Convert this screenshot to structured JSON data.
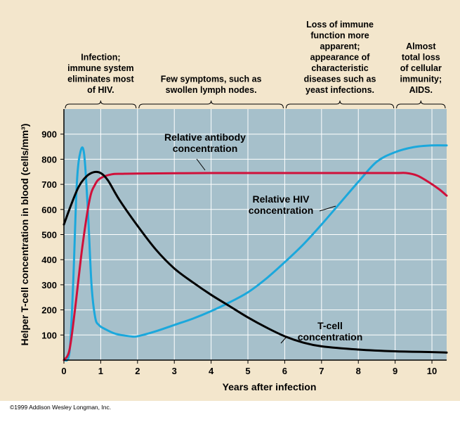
{
  "chart_data": {
    "type": "line",
    "title": "",
    "xlabel": "Years after infection",
    "ylabel": "Helper T-cell concentration in blood (cells/mm³)",
    "xlim": [
      0,
      10.4
    ],
    "ylim": [
      0,
      1000
    ],
    "grid": true,
    "x_ticks": [
      "0",
      "1",
      "2",
      "3",
      "4",
      "5",
      "6",
      "7",
      "8",
      "9",
      "10"
    ],
    "y_ticks": [
      "100",
      "200",
      "300",
      "400",
      "500",
      "600",
      "700",
      "800",
      "900"
    ],
    "phases": [
      {
        "text": [
          "Infection;",
          "immune system",
          "eliminates most",
          "of HIV."
        ],
        "start": 0,
        "end": 2
      },
      {
        "text": [
          "Few symptoms, such as",
          "swollen lymph nodes."
        ],
        "start": 2,
        "end": 6
      },
      {
        "text": [
          "Loss of immune",
          "function more",
          "apparent;",
          "appearance of",
          "characteristic",
          "diseases such as",
          "yeast infections."
        ],
        "start": 6,
        "end": 9
      },
      {
        "text": [
          "Almost",
          "total loss",
          "of cellular",
          "immunity;",
          "AIDS."
        ],
        "start": 9,
        "end": 10.4
      }
    ],
    "series": [
      {
        "name": "T-cell concentration",
        "label_lines": [
          "T-cell",
          "concentration"
        ],
        "color": "#000000",
        "x": [
          0,
          0.2,
          0.4,
          0.6,
          0.8,
          1.0,
          1.2,
          1.5,
          2.0,
          2.5,
          3.0,
          3.5,
          4.0,
          4.5,
          5.0,
          5.5,
          6.0,
          6.5,
          7.0,
          8.0,
          9.0,
          10.0,
          10.4
        ],
        "values": [
          540,
          620,
          690,
          730,
          748,
          745,
          715,
          640,
          535,
          440,
          365,
          310,
          260,
          215,
          170,
          130,
          95,
          70,
          55,
          42,
          35,
          32,
          30
        ]
      },
      {
        "name": "Relative antibody concentration",
        "label_lines": [
          "Relative antibody",
          "concentration"
        ],
        "color": "#d0103a",
        "x": [
          0,
          0.15,
          0.3,
          0.5,
          0.7,
          0.85,
          1.0,
          1.3,
          1.6,
          2.0,
          4.0,
          6.0,
          8.0,
          9.0,
          9.3,
          9.6,
          9.9,
          10.2,
          10.4
        ],
        "values": [
          0,
          40,
          200,
          450,
          640,
          700,
          725,
          740,
          742,
          743,
          745,
          745,
          745,
          745,
          745,
          735,
          710,
          680,
          655
        ]
      },
      {
        "name": "Relative HIV concentration",
        "label_lines": [
          "Relative HIV",
          "concentration"
        ],
        "color": "#1ba8dc",
        "x": [
          0,
          0.15,
          0.25,
          0.35,
          0.45,
          0.55,
          0.65,
          0.75,
          0.85,
          0.95,
          1.1,
          1.4,
          1.8,
          2.0,
          2.5,
          3.0,
          3.5,
          4.0,
          4.5,
          5.0,
          5.5,
          6.0,
          6.5,
          7.0,
          7.5,
          8.0,
          8.5,
          9.0,
          9.5,
          10.0,
          10.4
        ],
        "values": [
          0,
          30,
          300,
          700,
          830,
          820,
          600,
          300,
          170,
          140,
          125,
          105,
          95,
          95,
          115,
          140,
          165,
          195,
          230,
          270,
          325,
          390,
          460,
          540,
          625,
          710,
          790,
          828,
          848,
          855,
          855
        ]
      }
    ]
  },
  "footer": {
    "copyright": "©1999 Addison Wesley Longman, Inc."
  }
}
